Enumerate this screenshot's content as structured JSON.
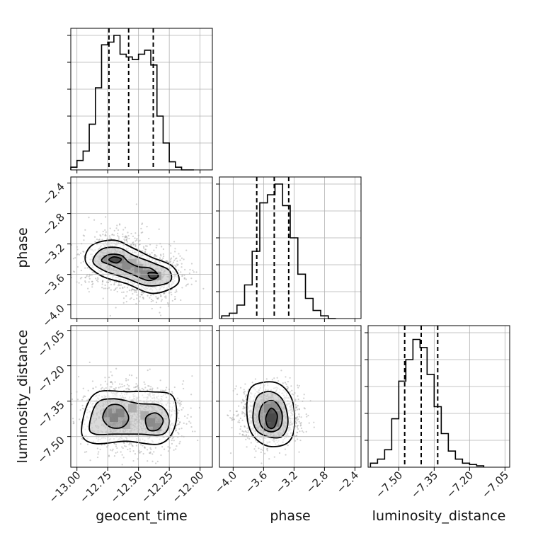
{
  "chart_data": {
    "type": "corner",
    "parameters": [
      "geocent_time",
      "phase",
      "luminosity_distance"
    ],
    "axis_labels": {
      "bottom": [
        "geocent_time",
        "phase",
        "luminosity_distance"
      ],
      "left": [
        "phase",
        "luminosity_distance"
      ]
    },
    "ranges": {
      "geocent_time": [
        -13.05,
        -11.9
      ],
      "phase": [
        -4.18,
        -2.32
      ],
      "luminosity_distance": [
        -7.63,
        -7.03
      ]
    },
    "ticks": {
      "geocent_time": {
        "values": [
          -13.0,
          -12.75,
          -12.5,
          -12.25,
          -12.0
        ],
        "labels": [
          "−13.00",
          "−12.75",
          "−12.50",
          "−12.25",
          "−12.00"
        ]
      },
      "phase": {
        "values": [
          -4.0,
          -3.6,
          -3.2,
          -2.8,
          -2.4
        ],
        "labels": [
          "−4.0",
          "−3.6",
          "−3.2",
          "−2.8",
          "−2.4"
        ]
      },
      "luminosity_distance": {
        "values": [
          -7.5,
          -7.35,
          -7.2,
          -7.05
        ],
        "labels": [
          "−7.50",
          "−7.35",
          "−7.20",
          "−7.05"
        ]
      }
    },
    "grid": true,
    "histograms": {
      "geocent_time": {
        "bins": [
          -13.025,
          -12.975,
          -12.925,
          -12.875,
          -12.825,
          -12.775,
          -12.725,
          -12.675,
          -12.625,
          -12.575,
          -12.525,
          -12.475,
          -12.425,
          -12.375,
          -12.325,
          -12.275,
          -12.225,
          -12.175,
          -12.125,
          -12.075
        ],
        "counts": [
          0.02,
          0.07,
          0.14,
          0.34,
          0.61,
          0.93,
          0.95,
          1.0,
          0.86,
          0.84,
          0.82,
          0.86,
          0.89,
          0.78,
          0.4,
          0.2,
          0.06,
          0.02,
          0.0,
          0.0
        ],
        "quantiles": [
          -12.74,
          -12.58,
          -12.38
        ]
      },
      "phase": {
        "bins": [
          -4.1,
          -4.0,
          -3.9,
          -3.8,
          -3.7,
          -3.6,
          -3.5,
          -3.4,
          -3.3,
          -3.2,
          -3.1,
          -3.0,
          -2.9,
          -2.8,
          -2.7
        ],
        "counts": [
          0.02,
          0.04,
          0.1,
          0.25,
          0.5,
          0.86,
          0.92,
          1.0,
          0.84,
          0.6,
          0.33,
          0.15,
          0.06,
          0.02,
          0.0
        ],
        "quantiles": [
          -3.69,
          -3.46,
          -3.27
        ]
      },
      "luminosity_distance": {
        "bins": [
          -7.605,
          -7.575,
          -7.545,
          -7.515,
          -7.485,
          -7.455,
          -7.425,
          -7.395,
          -7.365,
          -7.335,
          -7.305,
          -7.275,
          -7.245,
          -7.215,
          -7.185,
          -7.155
        ],
        "counts": [
          0.03,
          0.06,
          0.13,
          0.36,
          0.64,
          0.8,
          0.95,
          0.89,
          0.69,
          0.45,
          0.25,
          0.12,
          0.06,
          0.03,
          0.02,
          0.01
        ],
        "quantiles": [
          -7.475,
          -7.405,
          -7.335
        ]
      }
    },
    "scatter_2d": {
      "phase_vs_geocent_time": {
        "x": "geocent_time",
        "y": "phase",
        "modes": [
          {
            "x": -12.68,
            "y": -3.4,
            "sx": 0.12,
            "sy": 0.16,
            "weight": 0.55
          },
          {
            "x": -12.4,
            "y": -3.62,
            "sx": 0.12,
            "sy": 0.14,
            "weight": 0.45
          }
        ],
        "density_cells": [
          {
            "x": -12.7,
            "y": -3.4,
            "w": 0.95
          },
          {
            "x": -12.65,
            "y": -3.4,
            "w": 1.0
          },
          {
            "x": -12.75,
            "y": -3.4,
            "w": 0.8
          },
          {
            "x": -12.6,
            "y": -3.48,
            "w": 0.7
          },
          {
            "x": -12.5,
            "y": -3.52,
            "w": 0.6
          },
          {
            "x": -12.45,
            "y": -3.6,
            "w": 0.75
          },
          {
            "x": -12.4,
            "y": -3.6,
            "w": 0.9
          },
          {
            "x": -12.35,
            "y": -3.62,
            "w": 0.85
          },
          {
            "x": -12.55,
            "y": -3.45,
            "w": 0.55
          }
        ],
        "contours": [
          {
            "level": 1,
            "points": [
              [
                -12.93,
                -3.43
              ],
              [
                -12.88,
                -3.22
              ],
              [
                -12.7,
                -3.15
              ],
              [
                -12.55,
                -3.25
              ],
              [
                -12.4,
                -3.37
              ],
              [
                -12.22,
                -3.5
              ],
              [
                -12.18,
                -3.72
              ],
              [
                -12.38,
                -3.85
              ],
              [
                -12.6,
                -3.72
              ],
              [
                -12.8,
                -3.62
              ]
            ]
          },
          {
            "level": 2,
            "points": [
              [
                -12.87,
                -3.43
              ],
              [
                -12.8,
                -3.27
              ],
              [
                -12.66,
                -3.25
              ],
              [
                -12.54,
                -3.35
              ],
              [
                -12.38,
                -3.45
              ],
              [
                -12.25,
                -3.55
              ],
              [
                -12.25,
                -3.7
              ],
              [
                -12.42,
                -3.75
              ],
              [
                -12.6,
                -3.65
              ],
              [
                -12.78,
                -3.55
              ]
            ]
          },
          {
            "level": 3,
            "points": [
              [
                -12.8,
                -3.42
              ],
              [
                -12.74,
                -3.34
              ],
              [
                -12.64,
                -3.35
              ],
              [
                -12.58,
                -3.44
              ],
              [
                -12.5,
                -3.5
              ],
              [
                -12.4,
                -3.52
              ],
              [
                -12.34,
                -3.62
              ],
              [
                -12.42,
                -3.68
              ],
              [
                -12.55,
                -3.6
              ],
              [
                -12.72,
                -3.48
              ]
            ]
          },
          {
            "level": 4,
            "points": [
              [
                -12.74,
                -3.41
              ],
              [
                -12.7,
                -3.37
              ],
              [
                -12.64,
                -3.4
              ],
              [
                -12.68,
                -3.45
              ]
            ]
          },
          {
            "level": 4,
            "points": [
              [
                -12.42,
                -3.58
              ],
              [
                -12.36,
                -3.58
              ],
              [
                -12.34,
                -3.63
              ],
              [
                -12.4,
                -3.65
              ]
            ]
          }
        ]
      },
      "luminosity_distance_vs_geocent_time": {
        "x": "geocent_time",
        "y": "luminosity_distance",
        "modes": [
          {
            "x": -12.68,
            "y": -7.41,
            "sx": 0.13,
            "sy": 0.06,
            "weight": 0.55
          },
          {
            "x": -12.4,
            "y": -7.42,
            "sx": 0.12,
            "sy": 0.06,
            "weight": 0.45
          }
        ],
        "density_cells": [
          {
            "x": -12.7,
            "y": -7.42,
            "w": 1.0
          },
          {
            "x": -12.65,
            "y": -7.4,
            "w": 0.85
          },
          {
            "x": -12.75,
            "y": -7.4,
            "w": 0.7
          },
          {
            "x": -12.55,
            "y": -7.38,
            "w": 0.55
          },
          {
            "x": -12.45,
            "y": -7.41,
            "w": 0.6
          },
          {
            "x": -12.4,
            "y": -7.44,
            "w": 0.75
          },
          {
            "x": -12.35,
            "y": -7.46,
            "w": 0.6
          },
          {
            "x": -12.6,
            "y": -7.45,
            "w": 0.5
          }
        ],
        "contours": [
          {
            "level": 1,
            "points": [
              [
                -12.96,
                -7.49
              ],
              [
                -12.92,
                -7.37
              ],
              [
                -12.82,
                -7.31
              ],
              [
                -12.6,
                -7.31
              ],
              [
                -12.4,
                -7.31
              ],
              [
                -12.22,
                -7.33
              ],
              [
                -12.2,
                -7.45
              ],
              [
                -12.32,
                -7.53
              ],
              [
                -12.6,
                -7.52
              ],
              [
                -12.85,
                -7.53
              ]
            ]
          },
          {
            "level": 2,
            "points": [
              [
                -12.9,
                -7.46
              ],
              [
                -12.84,
                -7.36
              ],
              [
                -12.7,
                -7.34
              ],
              [
                -12.5,
                -7.36
              ],
              [
                -12.32,
                -7.37
              ],
              [
                -12.25,
                -7.43
              ],
              [
                -12.3,
                -7.49
              ],
              [
                -12.5,
                -7.49
              ],
              [
                -12.7,
                -7.49
              ],
              [
                -12.85,
                -7.49
              ]
            ]
          },
          {
            "level": 3,
            "points": [
              [
                -12.79,
                -7.42
              ],
              [
                -12.74,
                -7.37
              ],
              [
                -12.64,
                -7.37
              ],
              [
                -12.58,
                -7.42
              ],
              [
                -12.63,
                -7.46
              ],
              [
                -12.73,
                -7.46
              ]
            ]
          },
          {
            "level": 3,
            "points": [
              [
                -12.44,
                -7.42
              ],
              [
                -12.36,
                -7.4
              ],
              [
                -12.3,
                -7.43
              ],
              [
                -12.34,
                -7.47
              ],
              [
                -12.42,
                -7.47
              ]
            ]
          }
        ]
      },
      "luminosity_distance_vs_phase": {
        "x": "phase",
        "y": "luminosity_distance",
        "modes": [
          {
            "x": -3.5,
            "y": -7.41,
            "sx": 0.16,
            "sy": 0.05,
            "weight": 1.0
          }
        ],
        "density_cells": [
          {
            "x": -3.5,
            "y": -7.42,
            "w": 1.0
          },
          {
            "x": -3.45,
            "y": -7.44,
            "w": 0.9
          },
          {
            "x": -3.55,
            "y": -7.38,
            "w": 0.7
          },
          {
            "x": -3.45,
            "y": -7.37,
            "w": 0.65
          },
          {
            "x": -3.55,
            "y": -7.46,
            "w": 0.6
          },
          {
            "x": -3.4,
            "y": -7.41,
            "w": 0.75
          }
        ],
        "contours": [
          {
            "level": 1,
            "points": [
              [
                -3.82,
                -7.4
              ],
              [
                -3.78,
                -7.3
              ],
              [
                -3.6,
                -7.27
              ],
              [
                -3.38,
                -7.28
              ],
              [
                -3.22,
                -7.35
              ],
              [
                -3.2,
                -7.47
              ],
              [
                -3.3,
                -7.53
              ],
              [
                -3.55,
                -7.54
              ],
              [
                -3.75,
                -7.49
              ]
            ]
          },
          {
            "level": 2,
            "points": [
              [
                -3.74,
                -7.41
              ],
              [
                -3.68,
                -7.33
              ],
              [
                -3.5,
                -7.31
              ],
              [
                -3.34,
                -7.35
              ],
              [
                -3.28,
                -7.44
              ],
              [
                -3.36,
                -7.5
              ],
              [
                -3.55,
                -7.5
              ],
              [
                -3.7,
                -7.47
              ]
            ]
          },
          {
            "level": 3,
            "points": [
              [
                -3.66,
                -7.41
              ],
              [
                -3.6,
                -7.36
              ],
              [
                -3.46,
                -7.35
              ],
              [
                -3.36,
                -7.4
              ],
              [
                -3.38,
                -7.46
              ],
              [
                -3.5,
                -7.48
              ],
              [
                -3.62,
                -7.46
              ]
            ]
          },
          {
            "level": 4,
            "points": [
              [
                -3.57,
                -7.42
              ],
              [
                -3.5,
                -7.38
              ],
              [
                -3.42,
                -7.41
              ],
              [
                -3.46,
                -7.46
              ],
              [
                -3.54,
                -7.46
              ]
            ]
          }
        ]
      }
    }
  }
}
